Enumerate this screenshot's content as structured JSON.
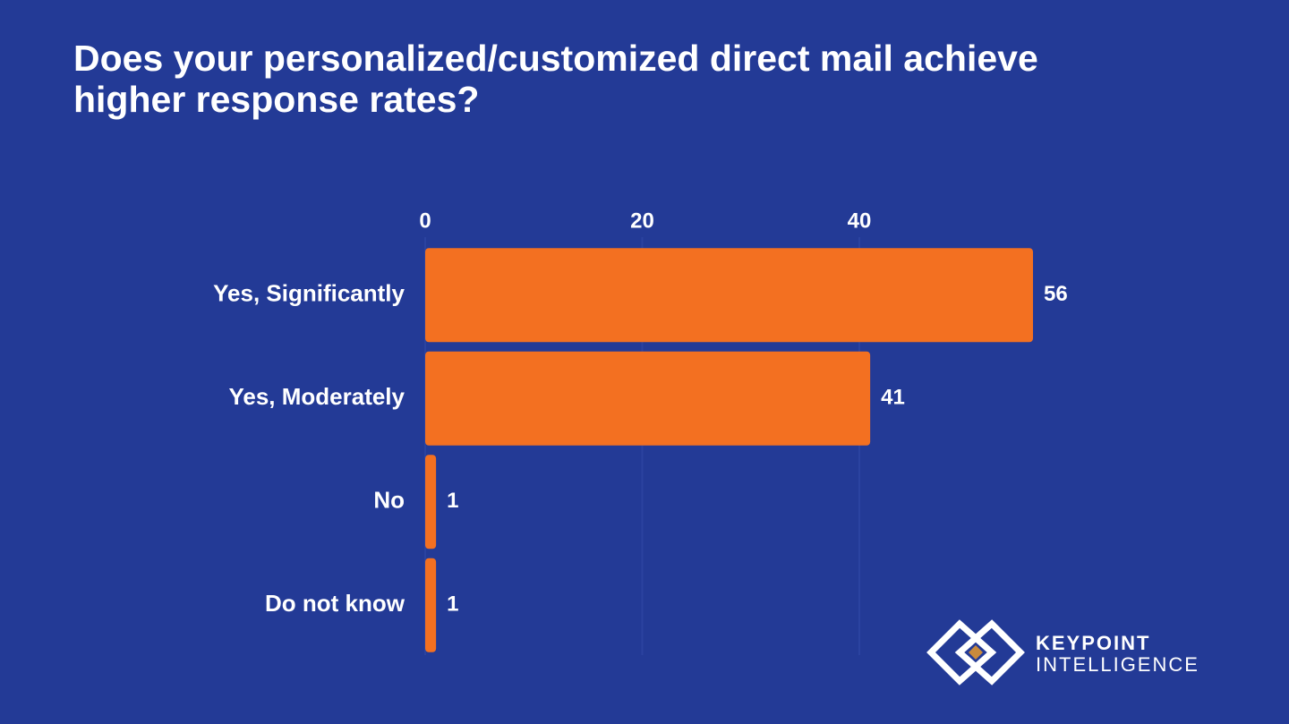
{
  "chart_data": {
    "type": "bar",
    "orientation": "horizontal",
    "title": "Does your personalized/customized direct mail achieve higher response rates?",
    "categories": [
      "Yes, Significantly",
      "Yes, Moderately",
      "No",
      "Do not know"
    ],
    "values": [
      56,
      41,
      1,
      1
    ],
    "color": "#f37021",
    "xlim": [
      0,
      60
    ],
    "xticks": [
      0,
      20,
      40
    ],
    "grid": true
  },
  "logo": {
    "line1": "KEYPOINT",
    "line2": "INTELLIGENCE"
  }
}
